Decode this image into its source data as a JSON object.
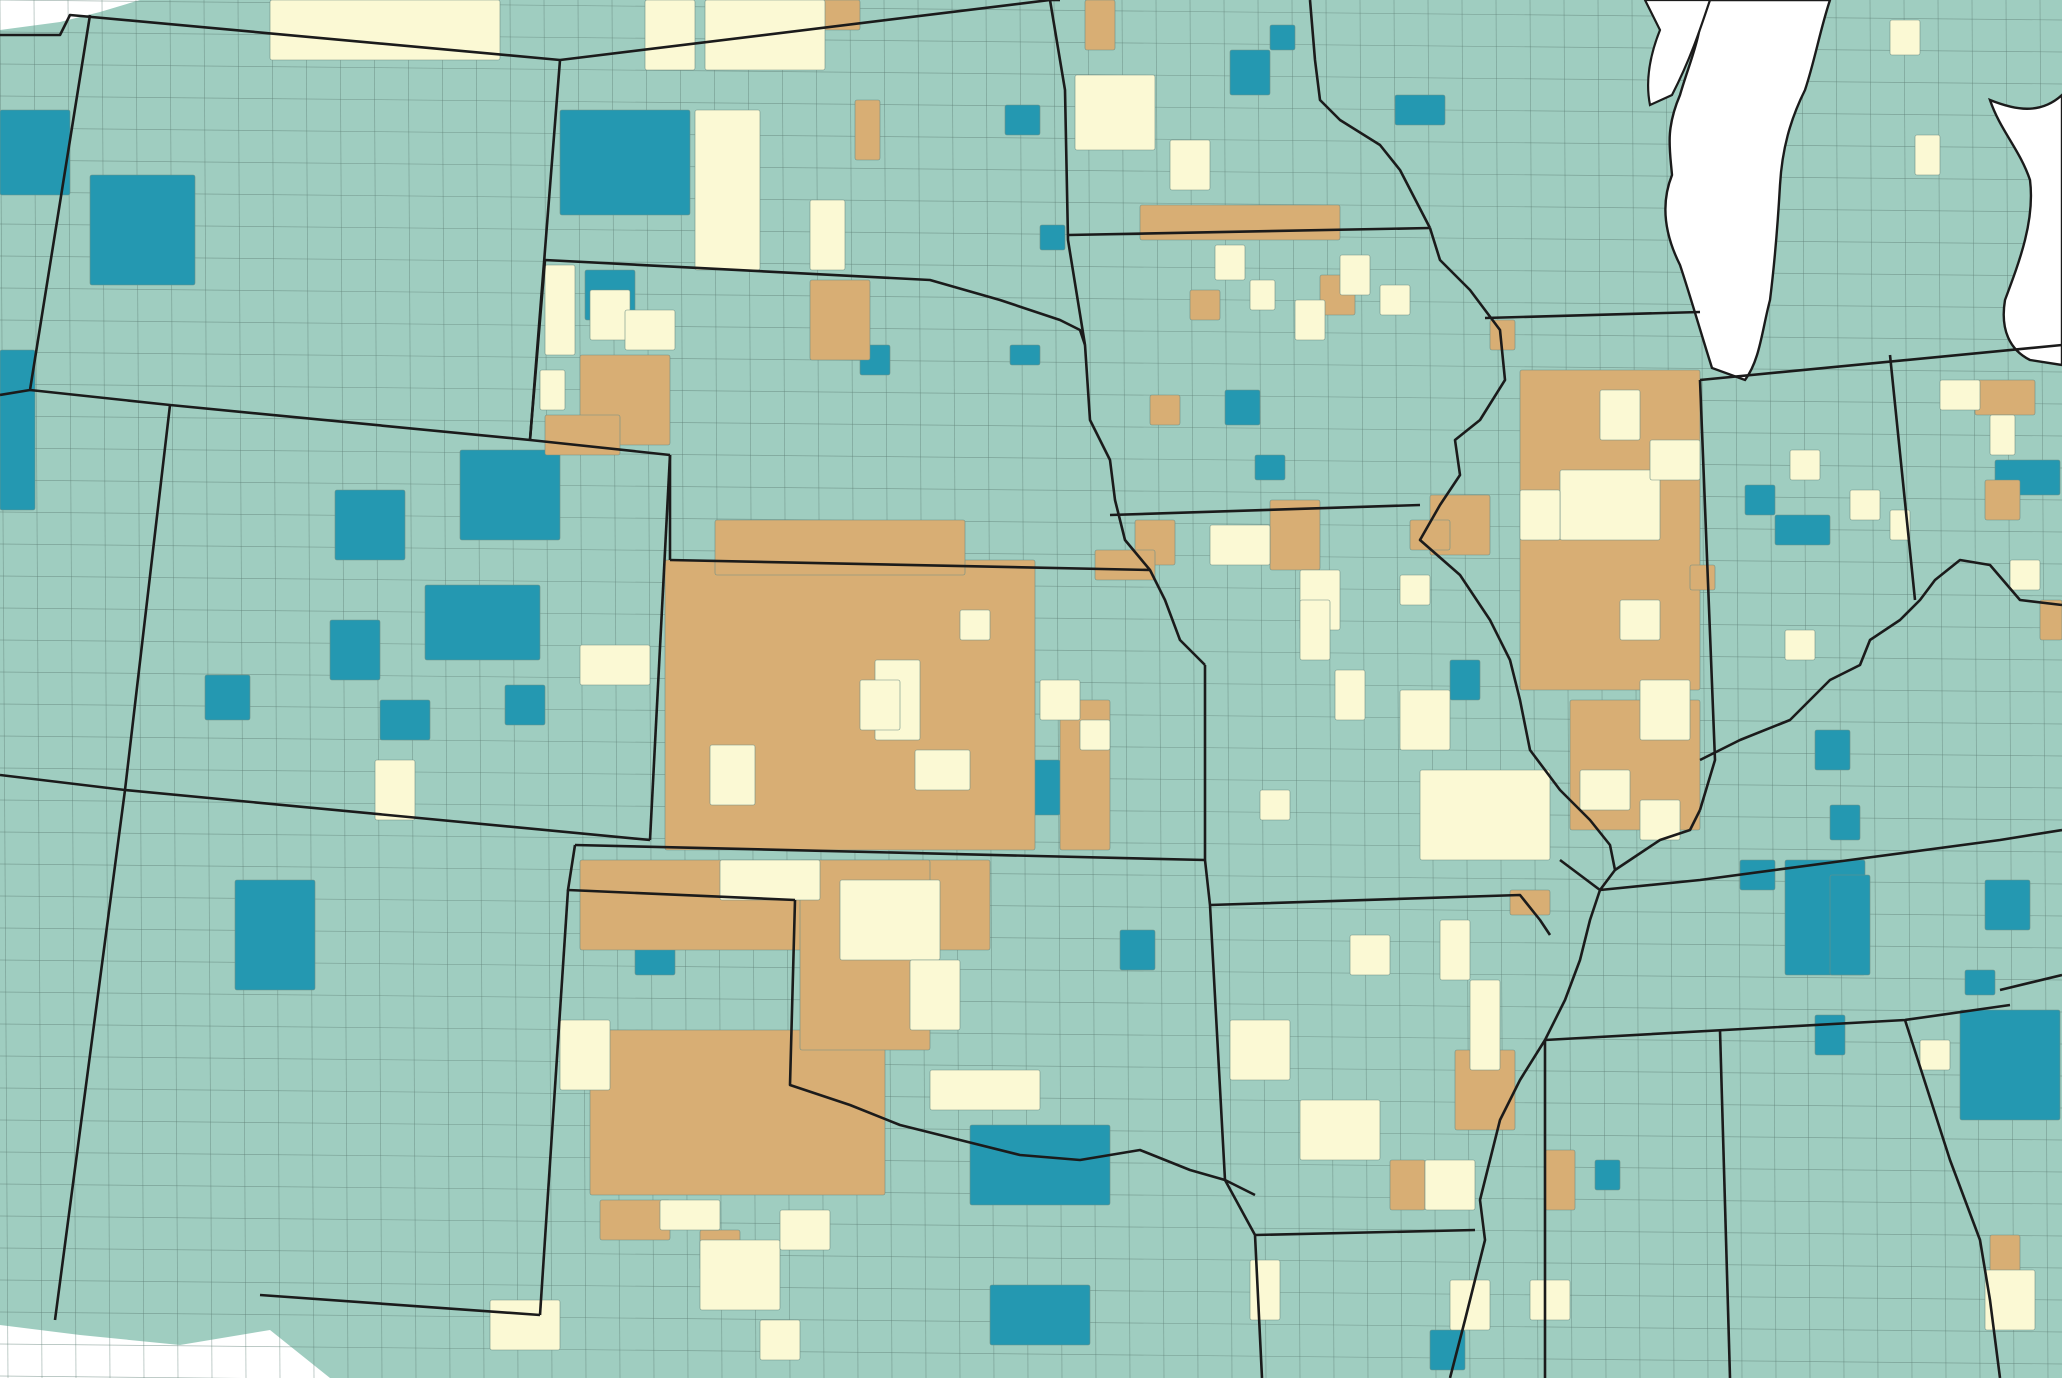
{
  "map": {
    "colors": {
      "base": "#9fcdc0",
      "high": "#2498b1",
      "light": "#fbf9d4",
      "tan": "#d8ae74",
      "water": "#ffffff",
      "border": "#1b1b1b"
    },
    "categories": [
      "base",
      "high",
      "light",
      "tan"
    ],
    "features": [
      "county-grid",
      "state-borders",
      "lake-michigan",
      "choropleth-patches"
    ]
  }
}
